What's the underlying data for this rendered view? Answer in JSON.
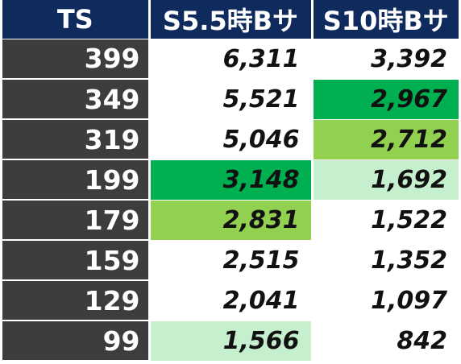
{
  "table": {
    "headers": [
      "TS",
      "S5.5時Bサ",
      "S10時Bサ"
    ],
    "colors": {
      "header_bg": "#0f2a5c",
      "ts_bg": "#3d3d3d",
      "highlight_dark_green": "#00b050",
      "highlight_light_green": "#92d050",
      "highlight_pale_green": "#c6efce"
    },
    "rows": [
      {
        "ts": "399",
        "s55": "6,311",
        "s10": "3,392",
        "s55_hl": "",
        "s10_hl": ""
      },
      {
        "ts": "349",
        "s55": "5,521",
        "s10": "2,967",
        "s55_hl": "",
        "s10_hl": "hl-dark"
      },
      {
        "ts": "319",
        "s55": "5,046",
        "s10": "2,712",
        "s55_hl": "",
        "s10_hl": "hl-mid"
      },
      {
        "ts": "199",
        "s55": "3,148",
        "s10": "1,692",
        "s55_hl": "hl-dark",
        "s10_hl": "hl-light"
      },
      {
        "ts": "179",
        "s55": "2,831",
        "s10": "1,522",
        "s55_hl": "hl-mid",
        "s10_hl": ""
      },
      {
        "ts": "159",
        "s55": "2,515",
        "s10": "1,352",
        "s55_hl": "",
        "s10_hl": ""
      },
      {
        "ts": "129",
        "s55": "2,041",
        "s10": "1,097",
        "s55_hl": "",
        "s10_hl": ""
      },
      {
        "ts": "99",
        "s55": "1,566",
        "s10": "842",
        "s55_hl": "hl-light",
        "s10_hl": ""
      }
    ]
  }
}
